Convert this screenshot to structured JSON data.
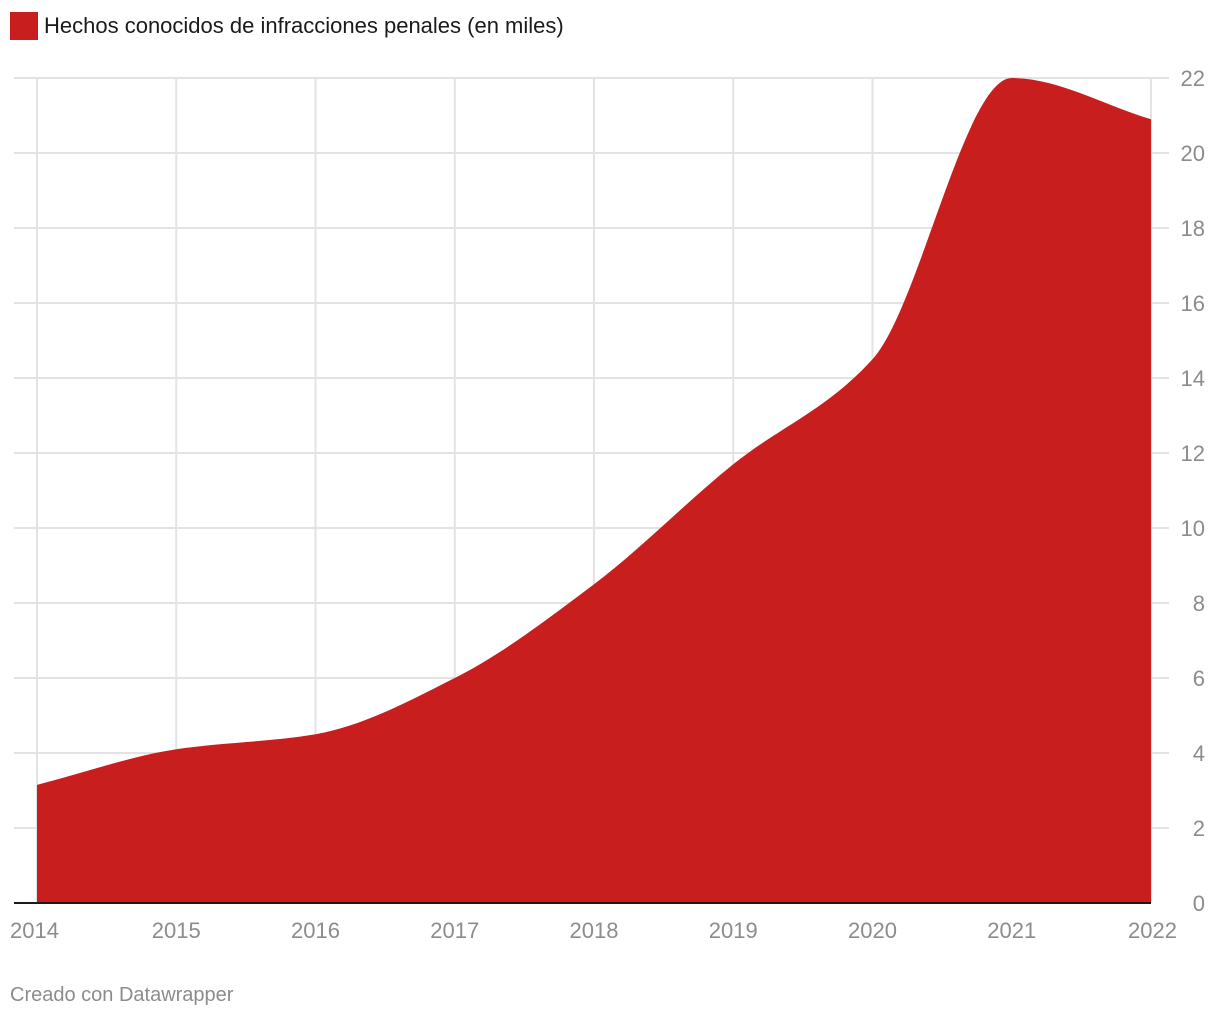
{
  "legend": {
    "label": "Hechos conocidos de infracciones penales (en miles)",
    "color": "#c81e1e"
  },
  "credit": "Creado con Datawrapper",
  "chart_data": {
    "type": "area",
    "title": "",
    "xlabel": "",
    "ylabel": "",
    "x": [
      2014,
      2015,
      2016,
      2017,
      2018,
      2019,
      2020,
      2021,
      2022
    ],
    "series": [
      {
        "name": "Hechos conocidos de infracciones penales (en miles)",
        "values": [
          3.15,
          4.1,
          4.5,
          6.0,
          8.5,
          11.7,
          14.5,
          22.0,
          20.9
        ]
      }
    ],
    "x_ticks": [
      "2014",
      "2015",
      "2016",
      "2017",
      "2018",
      "2019",
      "2020",
      "2021",
      "2022"
    ],
    "y_ticks": [
      "0",
      "2",
      "4",
      "6",
      "8",
      "10",
      "12",
      "14",
      "16",
      "18",
      "20",
      "22"
    ],
    "xlim": [
      2014,
      2022
    ],
    "ylim": [
      0,
      22
    ],
    "y_axis_side": "right",
    "grid": true,
    "fill_color": "#c81e1e",
    "grid_color": "#e3e3e3",
    "baseline_color": "#1a1a1a"
  }
}
